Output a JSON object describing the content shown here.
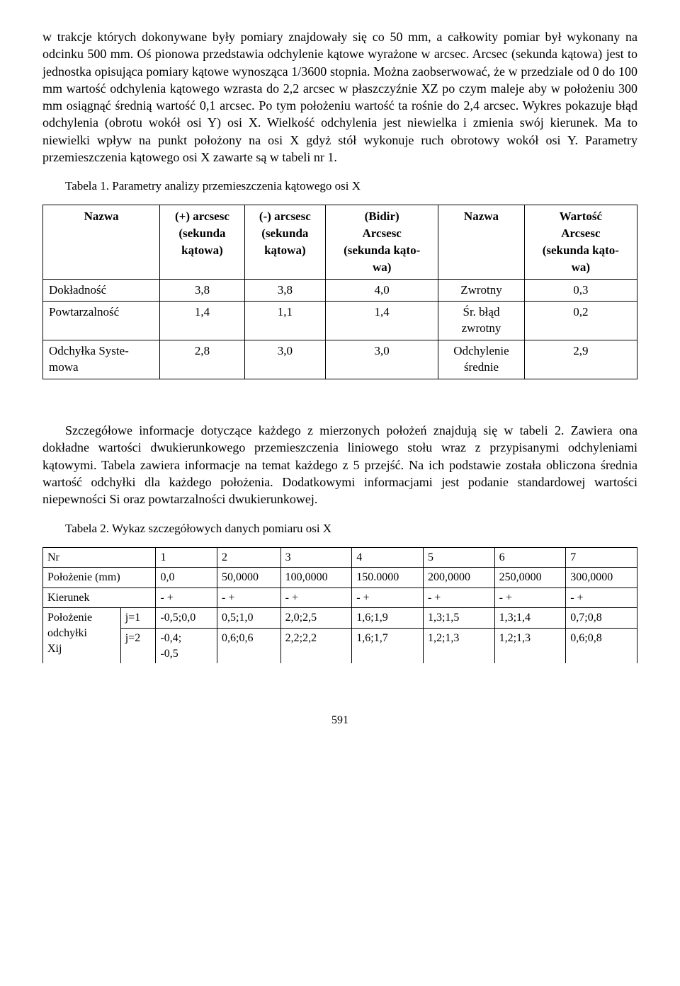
{
  "para1": "w trakcje których dokonywane były pomiary znajdowały się co 50 mm, a całkowity pomiar był wykonany na odcinku 500 mm. Oś pionowa przedstawia odchylenie kątowe wyrażone w arcsec. Arcsec (sekunda kątowa) jest to jednostka opisująca pomiary kątowe wynosząca 1/3600 stopnia. Można zaobserwować, że w przedziale od 0 do 100 mm wartość odchylenia kątowego wzrasta do 2,2 arcsec  w płaszczyźnie XZ po czym maleje aby w położeniu 300 mm osiągnąć średnią wartość 0,1 arcsec. Po tym położeniu wartość ta rośnie do 2,4 arcsec. Wykres pokazuje błąd odchylenia (obrotu wokół osi Y) osi X. Wielkość odchylenia jest niewielka i zmienia swój kierunek. Ma to niewielki wpływ na punkt położony na osi X gdyż stół wykonuje ruch obrotowy wokół osi Y. Parametry przemieszczenia kątowego osi X zawarte są w tabeli nr 1.",
  "caption1": "Tabela 1. Parametry analizy przemieszczenia kątowego osi X",
  "table1": {
    "headers": {
      "c0": "Nazwa",
      "c1_line1": "(+) arcsesc",
      "c1_line2": "(sekunda",
      "c1_line3": "kątowa)",
      "c2_line1": "(-) arcsesc",
      "c2_line2": "(sekunda",
      "c2_line3": "kątowa)",
      "c3_line1": "(Bidir)",
      "c3_line2": "Arcsesc",
      "c3_line3": "(sekunda kąto-",
      "c3_line4": "wa)",
      "c4": "Nazwa",
      "c5_line1": "Wartość",
      "c5_line2": "Arcsesc",
      "c5_line3": "(sekunda kąto-",
      "c5_line4": "wa)"
    },
    "rows": [
      {
        "label": "Dokładność",
        "c1": "3,8",
        "c2": "3,8",
        "c3": "4,0",
        "c4": "Zwrotny",
        "c5": "0,3"
      },
      {
        "label_l1": "Powtarzalność",
        "c1": "1,4",
        "c2": "1,1",
        "c3": "1,4",
        "c4_l1": "Śr. błąd",
        "c4_l2": "zwrotny",
        "c5": "0,2"
      },
      {
        "label_l1": "Odchyłka Syste-",
        "label_l2": "mowa",
        "c1": "2,8",
        "c2": "3,0",
        "c3": "3,0",
        "c4_l1": "Odchylenie",
        "c4_l2": "średnie",
        "c5": "2,9"
      }
    ]
  },
  "para2": "Szczegółowe informacje dotyczące każdego z mierzonych położeń znajdują się w tabeli 2. Zawiera ona dokładne wartości dwukierunkowego przemieszczenia liniowego stołu wraz z przypisanymi odchyleniami kątowymi. Tabela zawiera informacje na temat każdego z 5 przejść. Na ich podstawie została obliczona średnia wartość odchyłki dla każdego położenia. Dodatkowymi informacjami jest podanie standardowej wartości niepewności Si oraz powtarzalności dwukierunkowej.",
  "caption2": "Tabela 2. Wykaz szczegółowych danych pomiaru osi X",
  "table2": {
    "r0": {
      "label": "Nr",
      "sub": "",
      "c1": "1",
      "c2": "2",
      "c3": "3",
      "c4": "4",
      "c5": "5",
      "c6": "6",
      "c7": "7"
    },
    "r1": {
      "label": "Położenie (mm)",
      "sub": "",
      "c1": "0,0",
      "c2": "50,0000",
      "c3": "100,0000",
      "c4": "150.0000",
      "c5": "200,0000",
      "c6": "250,0000",
      "c7": "300,0000"
    },
    "r2": {
      "label": "Kierunek",
      "sub": "",
      "c1": "- +",
      "c2": "- +",
      "c3": "- +",
      "c4": "- +",
      "c5": "- +",
      "c6": "- +",
      "c7": "- +"
    },
    "r3": {
      "label_l1": "Położenie",
      "label_l2": "odchyłki",
      "label_l3": "Xij",
      "sub1": "j=1",
      "sub2": "j=2",
      "j1": {
        "c1": "-0,5;0,0",
        "c2": "0,5;1,0",
        "c3": "2,0;2,5",
        "c4": "1,6;1,9",
        "c5": "1,3;1,5",
        "c6": "1,3;1,4",
        "c7": "0,7;0,8"
      },
      "j2": {
        "c1_l1": "-0,4;",
        "c1_l2": "-0,5",
        "c2": "0,6;0,6",
        "c3": "2,2;2,2",
        "c4": "1,6;1,7",
        "c5": "1,2;1,3",
        "c6": "1,2;1,3",
        "c7": "0,6;0,8"
      }
    }
  },
  "page_number": "591"
}
